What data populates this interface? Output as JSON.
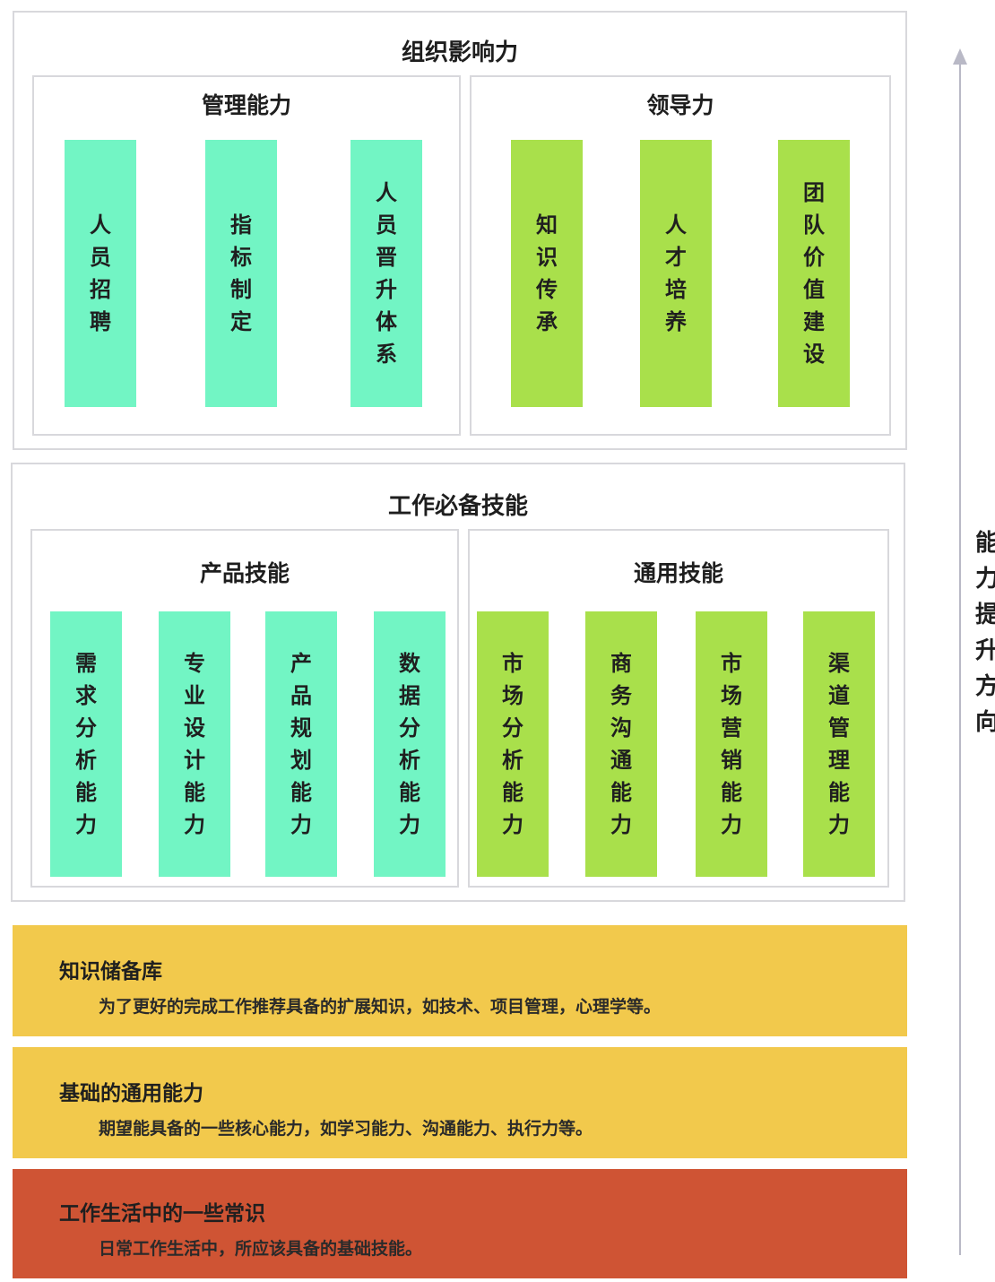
{
  "org": {
    "title": "组织影响力",
    "management": {
      "title": "管理能力",
      "items": [
        "人员招聘",
        "指标制定",
        "人员晋升体系"
      ]
    },
    "leadership": {
      "title": "领导力",
      "items": [
        "知识传承",
        "人才培养",
        "团队价值建设"
      ]
    }
  },
  "skills": {
    "title": "工作必备技能",
    "product": {
      "title": "产品技能",
      "items": [
        "需求分析能力",
        "专业设计能力",
        "产品规划能力",
        "数据分析能力"
      ]
    },
    "general": {
      "title": "通用技能",
      "items": [
        "市场分析能力",
        "商务沟通能力",
        "市场营销能力",
        "渠道管理能力"
      ]
    }
  },
  "bands": [
    {
      "title": "知识储备库",
      "desc": "为了更好的完成工作推荐具备的扩展知识，如技术、项目管理，心理学等。",
      "color": "#f2c94c"
    },
    {
      "title": "基础的通用能力",
      "desc": "期望能具备的一些核心能力，如学习能力、沟通能力、执行力等。",
      "color": "#f2c94c"
    },
    {
      "title": "工作生活中的一些常识",
      "desc": "日常工作生活中，所应该具备的基础技能。",
      "color": "#cf5434"
    }
  ],
  "side_label": "能力提升方向",
  "colors": {
    "teal": "#72f5c4",
    "lime": "#a9e04b",
    "yellow": "#f2c94c",
    "red": "#cf5434"
  }
}
